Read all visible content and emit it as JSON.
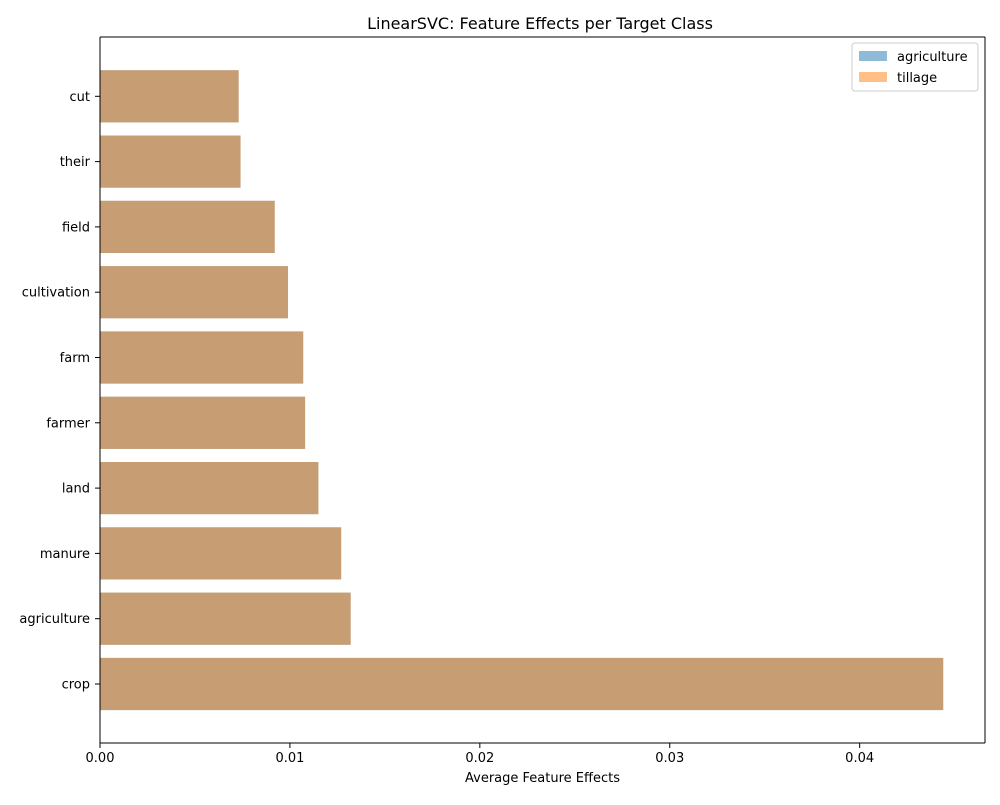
{
  "chart_data": {
    "type": "bar",
    "orientation": "horizontal",
    "title": "LinearSVC: Feature Effects per Target Class",
    "xlabel": "Average Feature Effects",
    "ylabel": "",
    "xlim": [
      0,
      0.0466
    ],
    "xticks": [
      "0.00",
      "0.01",
      "0.02",
      "0.03",
      "0.04"
    ],
    "categories": [
      "crop",
      "agriculture",
      "manure",
      "land",
      "farmer",
      "farm",
      "cultivation",
      "field",
      "their",
      "cut"
    ],
    "series": [
      {
        "name": "agriculture",
        "color": "#1f77b4",
        "alpha": 0.5,
        "values": [
          0.0444,
          0.0132,
          0.0127,
          0.0115,
          0.0108,
          0.0107,
          0.0099,
          0.0092,
          0.0074,
          0.0073
        ]
      },
      {
        "name": "tillage",
        "color": "#ff7f0e",
        "alpha": 0.5,
        "values": [
          0.0444,
          0.0132,
          0.0127,
          0.0115,
          0.0108,
          0.0107,
          0.0099,
          0.0092,
          0.0074,
          0.0073
        ]
      }
    ],
    "legend_position": "top-right",
    "grid": false
  }
}
